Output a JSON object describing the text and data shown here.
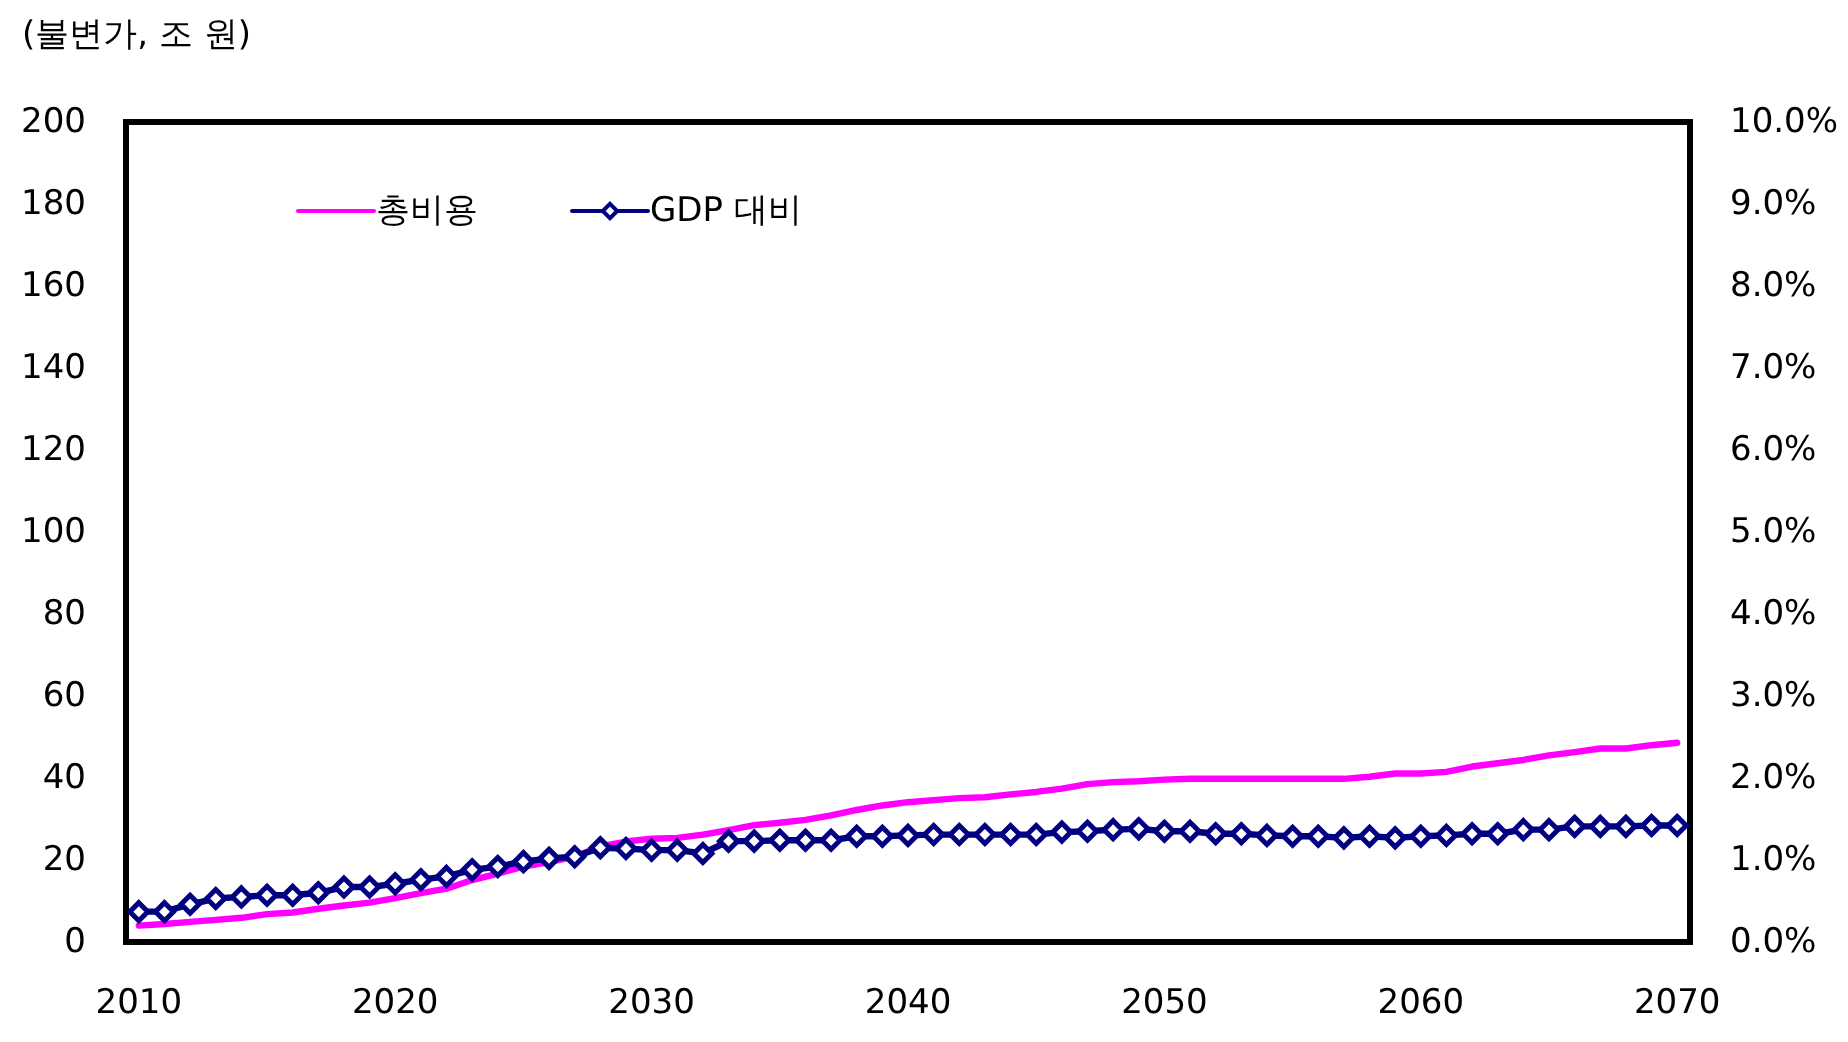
{
  "chart_data": {
    "type": "line",
    "ylabel": "(불변가, 조 원)",
    "categories": [
      "2010",
      null,
      null,
      null,
      null,
      null,
      null,
      null,
      null,
      null,
      "2020",
      null,
      null,
      null,
      null,
      null,
      null,
      null,
      null,
      null,
      "2030",
      null,
      null,
      null,
      null,
      null,
      null,
      null,
      null,
      null,
      "2040",
      null,
      null,
      null,
      null,
      null,
      null,
      null,
      null,
      null,
      "2050",
      null,
      null,
      null,
      null,
      null,
      null,
      null,
      null,
      null,
      "2060",
      null,
      null,
      null,
      null,
      null,
      null,
      null,
      null,
      null,
      "2070"
    ],
    "series": [
      {
        "name": "총비용",
        "color": "#ff00ff",
        "marker": "none",
        "values": [
          4.0,
          4.4,
          4.9,
          5.4,
          5.9,
          6.8,
          7.2,
          8.1,
          8.9,
          9.6,
          10.7,
          11.9,
          13.0,
          15.1,
          16.7,
          18.4,
          19.5,
          20.8,
          23.3,
          24.5,
          25.2,
          25.4,
          26.2,
          27.3,
          28.5,
          29.1,
          29.8,
          30.9,
          32.2,
          33.3,
          34.1,
          34.6,
          35.1,
          35.3,
          36.0,
          36.6,
          37.4,
          38.5,
          39.0,
          39.2,
          39.6,
          39.8,
          39.8,
          39.8,
          39.8,
          39.8,
          39.8,
          39.8,
          40.3,
          41.1,
          41.1,
          41.5,
          42.8,
          43.6,
          44.4,
          45.5,
          46.3,
          47.2,
          47.2,
          48.0,
          48.6
        ]
      },
      {
        "name": "GDP 대비",
        "color": "#000080",
        "marker": "diamond",
        "axis": "y2",
        "values": [
          0.37,
          0.37,
          0.46,
          0.53,
          0.55,
          0.57,
          0.57,
          0.6,
          0.67,
          0.67,
          0.71,
          0.76,
          0.8,
          0.88,
          0.92,
          0.98,
          1.02,
          1.04,
          1.15,
          1.14,
          1.12,
          1.12,
          1.08,
          1.23,
          1.23,
          1.24,
          1.24,
          1.24,
          1.29,
          1.29,
          1.3,
          1.31,
          1.31,
          1.31,
          1.31,
          1.31,
          1.34,
          1.35,
          1.37,
          1.38,
          1.35,
          1.35,
          1.32,
          1.32,
          1.3,
          1.29,
          1.29,
          1.27,
          1.29,
          1.27,
          1.29,
          1.3,
          1.32,
          1.32,
          1.37,
          1.37,
          1.41,
          1.41,
          1.41,
          1.42,
          1.42
        ]
      }
    ],
    "ylim": [
      0,
      200
    ],
    "yticks": [
      0,
      20,
      40,
      60,
      80,
      100,
      120,
      140,
      160,
      180,
      200
    ],
    "y2lim": [
      0,
      10
    ],
    "y2ticks": [
      {
        "value": 0,
        "label": "0.0%"
      },
      {
        "value": 1,
        "label": "1.0%"
      },
      {
        "value": 2,
        "label": "2.0%"
      },
      {
        "value": 3,
        "label": "3.0%"
      },
      {
        "value": 4,
        "label": "4.0%"
      },
      {
        "value": 5,
        "label": "5.0%"
      },
      {
        "value": 6,
        "label": "6.0%"
      },
      {
        "value": 7,
        "label": "7.0%"
      },
      {
        "value": 8,
        "label": "8.0%"
      },
      {
        "value": 9,
        "label": "9.0%"
      },
      {
        "value": 10,
        "label": "10.0%"
      }
    ],
    "legend": "top left",
    "line_style": "solid"
  }
}
